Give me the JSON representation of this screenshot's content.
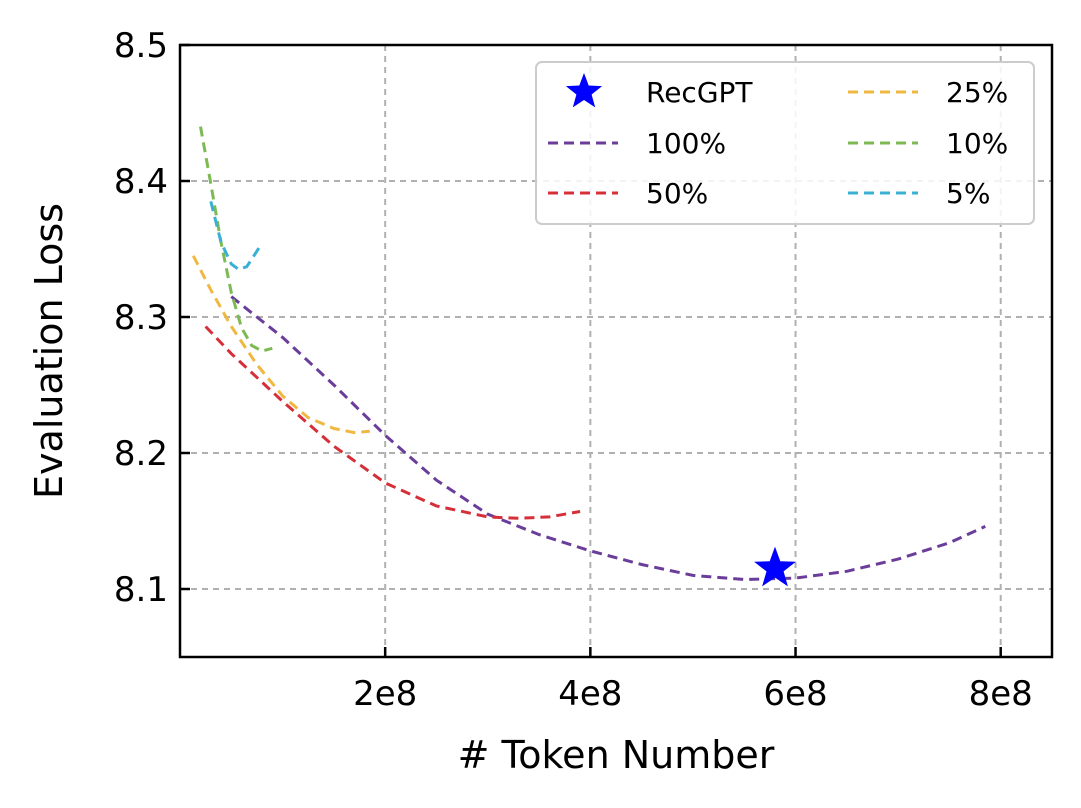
{
  "chart_data": {
    "type": "line",
    "xlabel": "# Token Number",
    "ylabel": "Evaluation Loss",
    "xlim": [
      0,
      850000000
    ],
    "ylim": [
      8.05,
      8.5
    ],
    "x_ticks": [
      200000000,
      400000000,
      600000000,
      800000000
    ],
    "x_tick_labels": [
      "2e8",
      "4e8",
      "6e8",
      "8e8"
    ],
    "y_ticks": [
      8.1,
      8.2,
      8.3,
      8.4,
      8.5
    ],
    "y_tick_labels": [
      "8.1",
      "8.2",
      "8.3",
      "8.4",
      "8.5"
    ],
    "grid": true,
    "legend_position": "top-right",
    "legend_columns": 2,
    "series": [
      {
        "name": "100%",
        "color": "#6a3d9a",
        "style": "dashed",
        "x": [
          50000000,
          100000000,
          150000000,
          200000000,
          250000000,
          300000000,
          350000000,
          400000000,
          450000000,
          500000000,
          550000000,
          600000000,
          650000000,
          700000000,
          750000000,
          785000000
        ],
        "y": [
          8.315,
          8.285,
          8.25,
          8.213,
          8.18,
          8.155,
          8.14,
          8.128,
          8.118,
          8.11,
          8.107,
          8.108,
          8.113,
          8.122,
          8.134,
          8.146
        ]
      },
      {
        "name": "50%",
        "color": "#d62f3a",
        "style": "dashed",
        "x": [
          25000000,
          50000000,
          100000000,
          150000000,
          200000000,
          250000000,
          300000000,
          330000000,
          360000000,
          390000000
        ],
        "y": [
          8.293,
          8.273,
          8.238,
          8.205,
          8.178,
          8.161,
          8.153,
          8.152,
          8.153,
          8.157
        ]
      },
      {
        "name": "25%",
        "color": "#f0b840",
        "style": "dashed",
        "x": [
          13000000,
          30000000,
          50000000,
          75000000,
          100000000,
          125000000,
          150000000,
          170000000,
          185000000
        ],
        "y": [
          8.345,
          8.32,
          8.293,
          8.265,
          8.242,
          8.226,
          8.218,
          8.215,
          8.216
        ]
      },
      {
        "name": "10%",
        "color": "#7dba54",
        "style": "dashed",
        "x": [
          20000000,
          30000000,
          40000000,
          50000000,
          60000000,
          70000000,
          80000000,
          90000000
        ],
        "y": [
          8.44,
          8.398,
          8.355,
          8.318,
          8.292,
          8.279,
          8.275,
          8.277
        ]
      },
      {
        "name": "5%",
        "color": "#3ab0d6",
        "style": "dashed",
        "x": [
          30000000,
          40000000,
          50000000,
          57000000,
          65000000,
          72000000,
          78000000
        ],
        "y": [
          8.385,
          8.355,
          8.339,
          8.335,
          8.337,
          8.345,
          8.352
        ]
      }
    ],
    "markers": [
      {
        "name": "RecGPT",
        "shape": "star",
        "color": "#0000ff",
        "x": 580000000,
        "y": 8.115
      }
    ]
  }
}
